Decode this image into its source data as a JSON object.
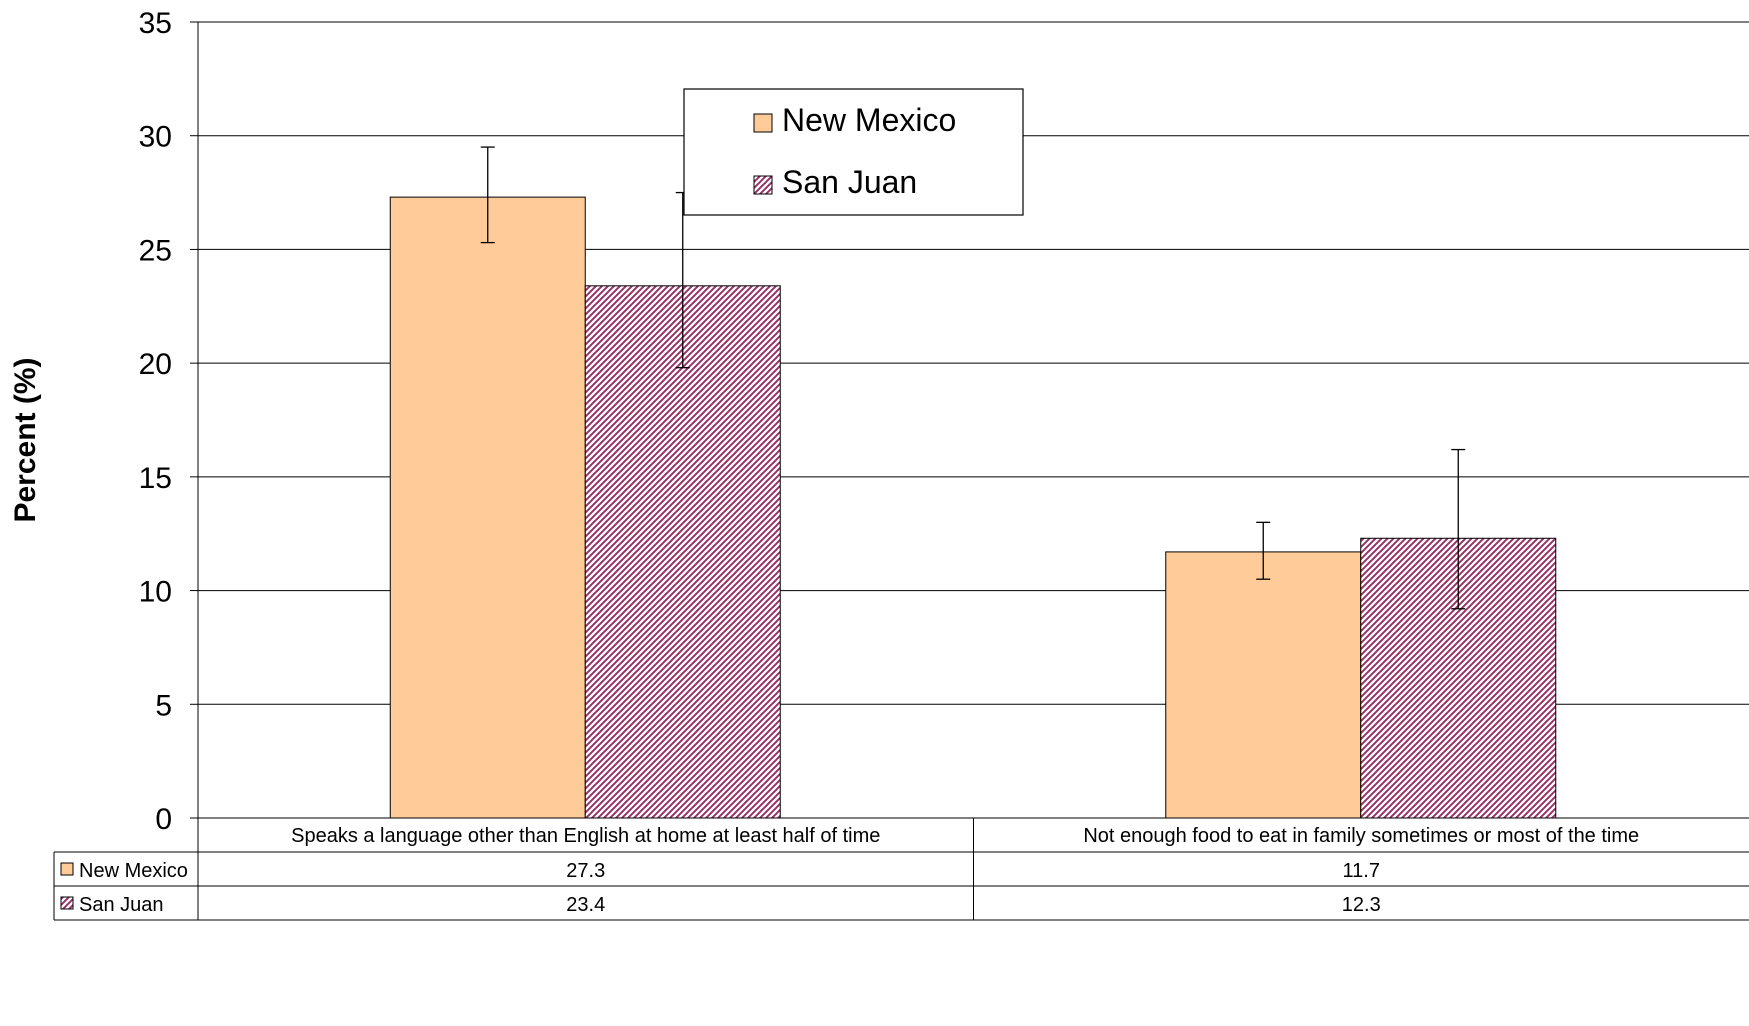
{
  "chart_data": {
    "type": "bar",
    "title": "",
    "xlabel": "",
    "ylabel": "Percent (%)",
    "ylim": [
      0,
      35
    ],
    "yticks": [
      0,
      5,
      10,
      15,
      20,
      25,
      30,
      35
    ],
    "grid": true,
    "legend_position": "top-center",
    "categories": [
      "Speaks a language other than English at home at least half of time",
      "Not enough food to eat in family sometimes or most of the time"
    ],
    "series": [
      {
        "name": "New Mexico",
        "color": "#FFCC99",
        "pattern": "solid",
        "values": [
          27.3,
          11.7
        ],
        "value_labels": [
          "27.3",
          "11.7"
        ],
        "error_low": [
          25.3,
          10.5
        ],
        "error_high": [
          29.5,
          13.0
        ]
      },
      {
        "name": "San Juan",
        "color": "#993366",
        "pattern": "diagonal-hatch",
        "values": [
          23.4,
          12.3
        ],
        "value_labels": [
          "23.4",
          "12.3"
        ],
        "error_low": [
          19.8,
          9.2
        ],
        "error_high": [
          27.5,
          16.2
        ]
      }
    ],
    "data_table": true
  }
}
